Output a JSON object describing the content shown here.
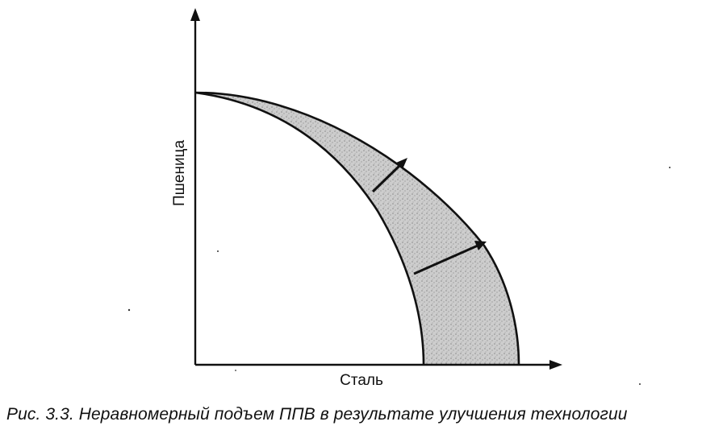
{
  "figure": {
    "y_axis_label": "Пшеница",
    "x_axis_label": "Сталь",
    "caption": "Рис. 3.3. Неравномерный подъем ППВ в результате улучшения технологии"
  },
  "colors": {
    "ink": "#111111",
    "shade": "#c9c9c9",
    "background": "#ffffff"
  },
  "icons": {
    "shift_arrows": "arrow-icon"
  }
}
